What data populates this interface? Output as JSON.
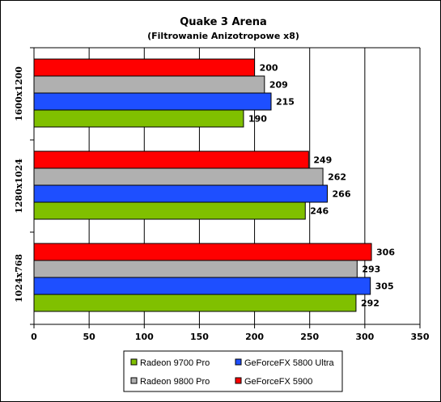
{
  "chart_data": {
    "type": "bar",
    "orientation": "horizontal",
    "title": "Quake 3 Arena",
    "subtitle": "(Filtrowanie Anizotropowe x8)",
    "categories": [
      "1600x1200",
      "1280x1024",
      "1024x768"
    ],
    "series": [
      {
        "name": "GeForceFX 5900",
        "color": "#ff0000",
        "values": [
          200,
          249,
          306
        ]
      },
      {
        "name": "Radeon 9800 Pro",
        "color": "#b0b0b0",
        "values": [
          209,
          262,
          293
        ]
      },
      {
        "name": "GeForceFX 5800 Ultra",
        "color": "#1e4fff",
        "values": [
          215,
          266,
          305
        ]
      },
      {
        "name": "Radeon 9700 Pro",
        "color": "#80c000",
        "values": [
          190,
          246,
          292
        ]
      }
    ],
    "xlim": [
      0,
      350
    ],
    "xticks": [
      0,
      50,
      100,
      150,
      200,
      250,
      300,
      350
    ],
    "grid": true,
    "legend_position": "bottom",
    "legend_order": [
      "Radeon 9700 Pro",
      "GeForceFX 5800 Ultra",
      "Radeon 9800 Pro",
      "GeForceFX 5900"
    ]
  }
}
